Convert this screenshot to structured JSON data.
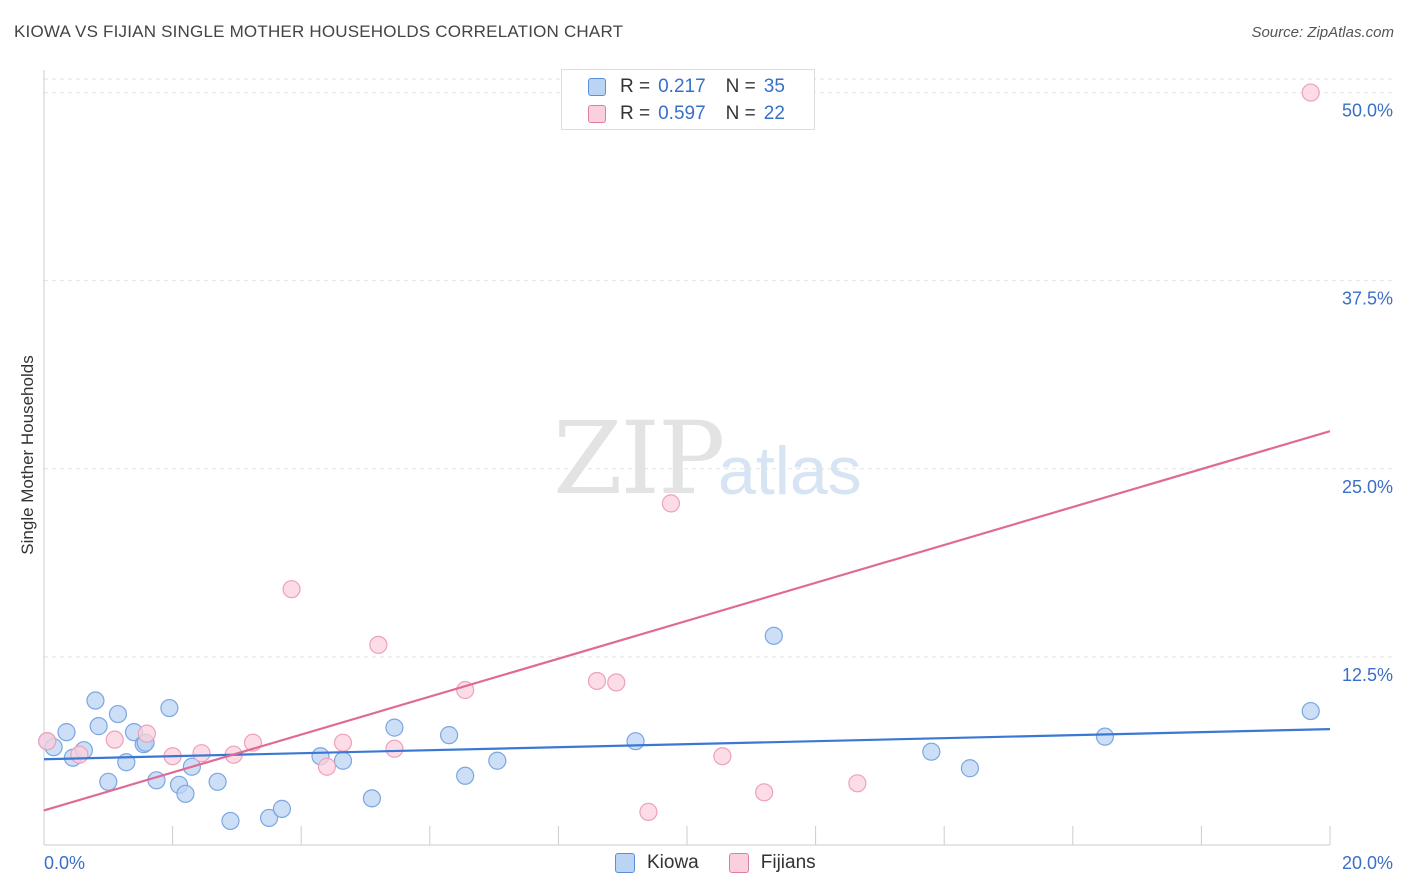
{
  "title": "KIOWA VS FIJIAN SINGLE MOTHER HOUSEHOLDS CORRELATION CHART",
  "source": "Source: ZipAtlas.com",
  "watermark": {
    "zip": "ZIP",
    "atlas": "atlas"
  },
  "legend": {
    "rows": [
      {
        "r_label": "R =",
        "r_value": "0.217",
        "n_label": "N =",
        "n_value": "35",
        "color": "#5b8fdc",
        "fill": "#bcd4f4"
      },
      {
        "r_label": "R =",
        "r_value": "0.597",
        "n_label": "N =",
        "n_value": "22",
        "color": "#e07ea0",
        "fill": "#fbd0dd"
      }
    ]
  },
  "bottom_legend": [
    {
      "label": "Kiowa",
      "color": "#5b8fdc",
      "fill": "#bcd4f4"
    },
    {
      "label": "Fijians",
      "color": "#e07ea0",
      "fill": "#fbd0dd"
    }
  ],
  "chart_data": {
    "type": "scatter",
    "title": "KIOWA VS FIJIAN SINGLE MOTHER HOUSEHOLDS CORRELATION CHART",
    "xlabel": "",
    "ylabel": "Single Mother Households",
    "xlim": [
      0,
      20
    ],
    "ylim": [
      0,
      51.5
    ],
    "x_tick_labels": [
      "0.0%",
      "20.0%"
    ],
    "y_ticks": [
      12.5,
      25.0,
      37.5,
      50.0
    ],
    "y_tick_labels": [
      "12.5%",
      "25.0%",
      "37.5%",
      "50.0%"
    ],
    "grid": true,
    "series": [
      {
        "name": "Kiowa",
        "color": "#3a78d4",
        "point_fill": "#bcd4f4",
        "point_stroke": "#7aa6e2",
        "trend": [
          [
            0,
            5.7
          ],
          [
            20,
            7.7
          ]
        ],
        "points": [
          [
            0.05,
            6.9
          ],
          [
            0.15,
            6.5
          ],
          [
            0.35,
            7.5
          ],
          [
            0.45,
            5.8
          ],
          [
            0.62,
            6.3
          ],
          [
            0.8,
            9.6
          ],
          [
            0.85,
            7.9
          ],
          [
            1.0,
            4.2
          ],
          [
            1.15,
            8.7
          ],
          [
            1.28,
            5.5
          ],
          [
            1.4,
            7.5
          ],
          [
            1.55,
            6.7
          ],
          [
            1.58,
            6.8
          ],
          [
            1.75,
            4.3
          ],
          [
            1.95,
            9.1
          ],
          [
            2.1,
            4.0
          ],
          [
            2.2,
            3.4
          ],
          [
            2.3,
            5.2
          ],
          [
            2.7,
            4.2
          ],
          [
            2.9,
            1.6
          ],
          [
            3.5,
            1.8
          ],
          [
            3.7,
            2.4
          ],
          [
            4.3,
            5.9
          ],
          [
            4.65,
            5.6
          ],
          [
            5.1,
            3.1
          ],
          [
            5.45,
            7.8
          ],
          [
            6.3,
            7.3
          ],
          [
            6.55,
            4.6
          ],
          [
            7.05,
            5.6
          ],
          [
            9.2,
            6.9
          ],
          [
            11.35,
            13.9
          ],
          [
            13.8,
            6.2
          ],
          [
            14.4,
            5.1
          ],
          [
            16.5,
            7.2
          ],
          [
            19.7,
            8.9
          ]
        ]
      },
      {
        "name": "Fijians",
        "color": "#e06a96",
        "point_fill": "#fbd0dd",
        "point_stroke": "#eda1bb",
        "trend": [
          [
            0,
            2.3
          ],
          [
            20,
            27.5
          ]
        ],
        "points": [
          [
            0.05,
            6.9
          ],
          [
            0.55,
            6.0
          ],
          [
            1.1,
            7.0
          ],
          [
            1.6,
            7.4
          ],
          [
            2.0,
            5.9
          ],
          [
            2.45,
            6.1
          ],
          [
            2.95,
            6.0
          ],
          [
            3.25,
            6.8
          ],
          [
            3.85,
            17.0
          ],
          [
            4.4,
            5.2
          ],
          [
            4.65,
            6.8
          ],
          [
            5.2,
            13.3
          ],
          [
            5.45,
            6.4
          ],
          [
            6.55,
            10.3
          ],
          [
            8.6,
            10.9
          ],
          [
            8.9,
            10.8
          ],
          [
            9.4,
            2.2
          ],
          [
            9.75,
            22.7
          ],
          [
            10.55,
            5.9
          ],
          [
            11.2,
            3.5
          ],
          [
            12.65,
            4.1
          ],
          [
            19.7,
            50.0
          ]
        ]
      }
    ]
  }
}
